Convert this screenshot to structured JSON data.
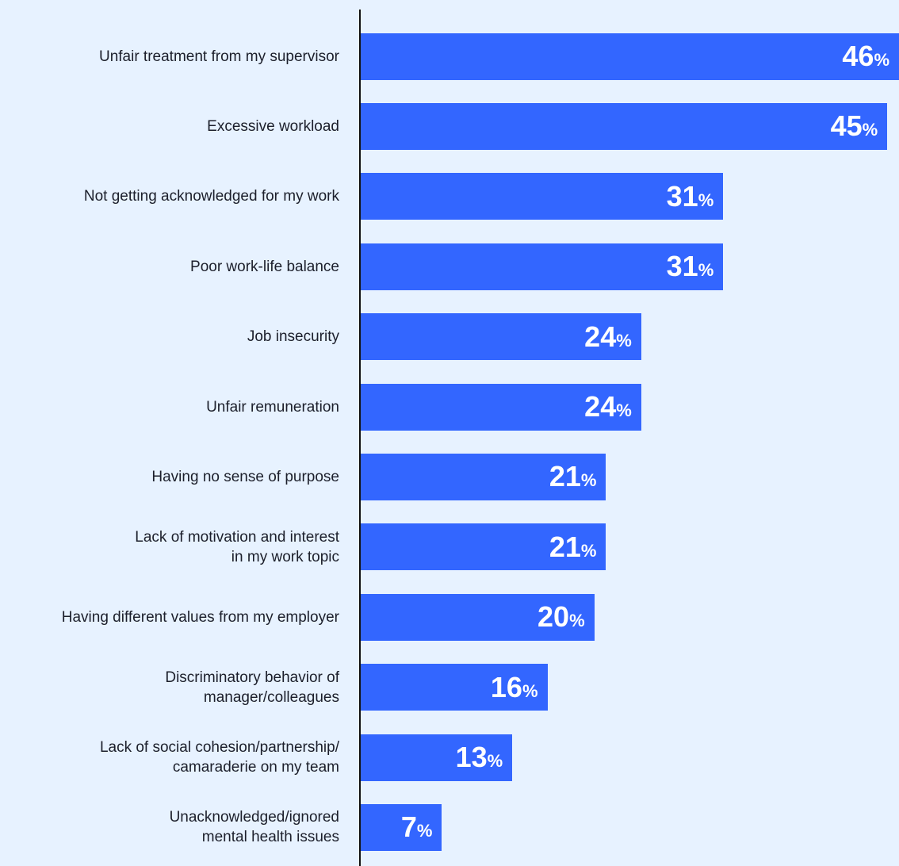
{
  "chart_data": {
    "type": "bar",
    "orientation": "horizontal",
    "categories": [
      "Unfair treatment from my supervisor",
      "Excessive workload",
      "Not getting acknowledged for my work",
      "Poor work-life balance",
      "Job insecurity",
      "Unfair remuneration",
      "Having no sense of purpose",
      "Lack of motivation and interest\nin my work topic",
      "Having different values from my employer",
      "Discriminatory behavior of\nmanager/colleagues",
      "Lack of social cohesion/partnership/\ncamaraderie on my team",
      "Unacknowledged/ignored\nmental health issues"
    ],
    "values": [
      46,
      45,
      31,
      31,
      24,
      24,
      21,
      21,
      20,
      16,
      13,
      7
    ],
    "value_suffix": "%",
    "xlim": [
      0,
      46
    ],
    "grid": false,
    "bar_color": "#3366ff",
    "background_color": "#e7f2ff",
    "label_color": "#1c1f2b",
    "value_text_color": "#ffffff"
  }
}
